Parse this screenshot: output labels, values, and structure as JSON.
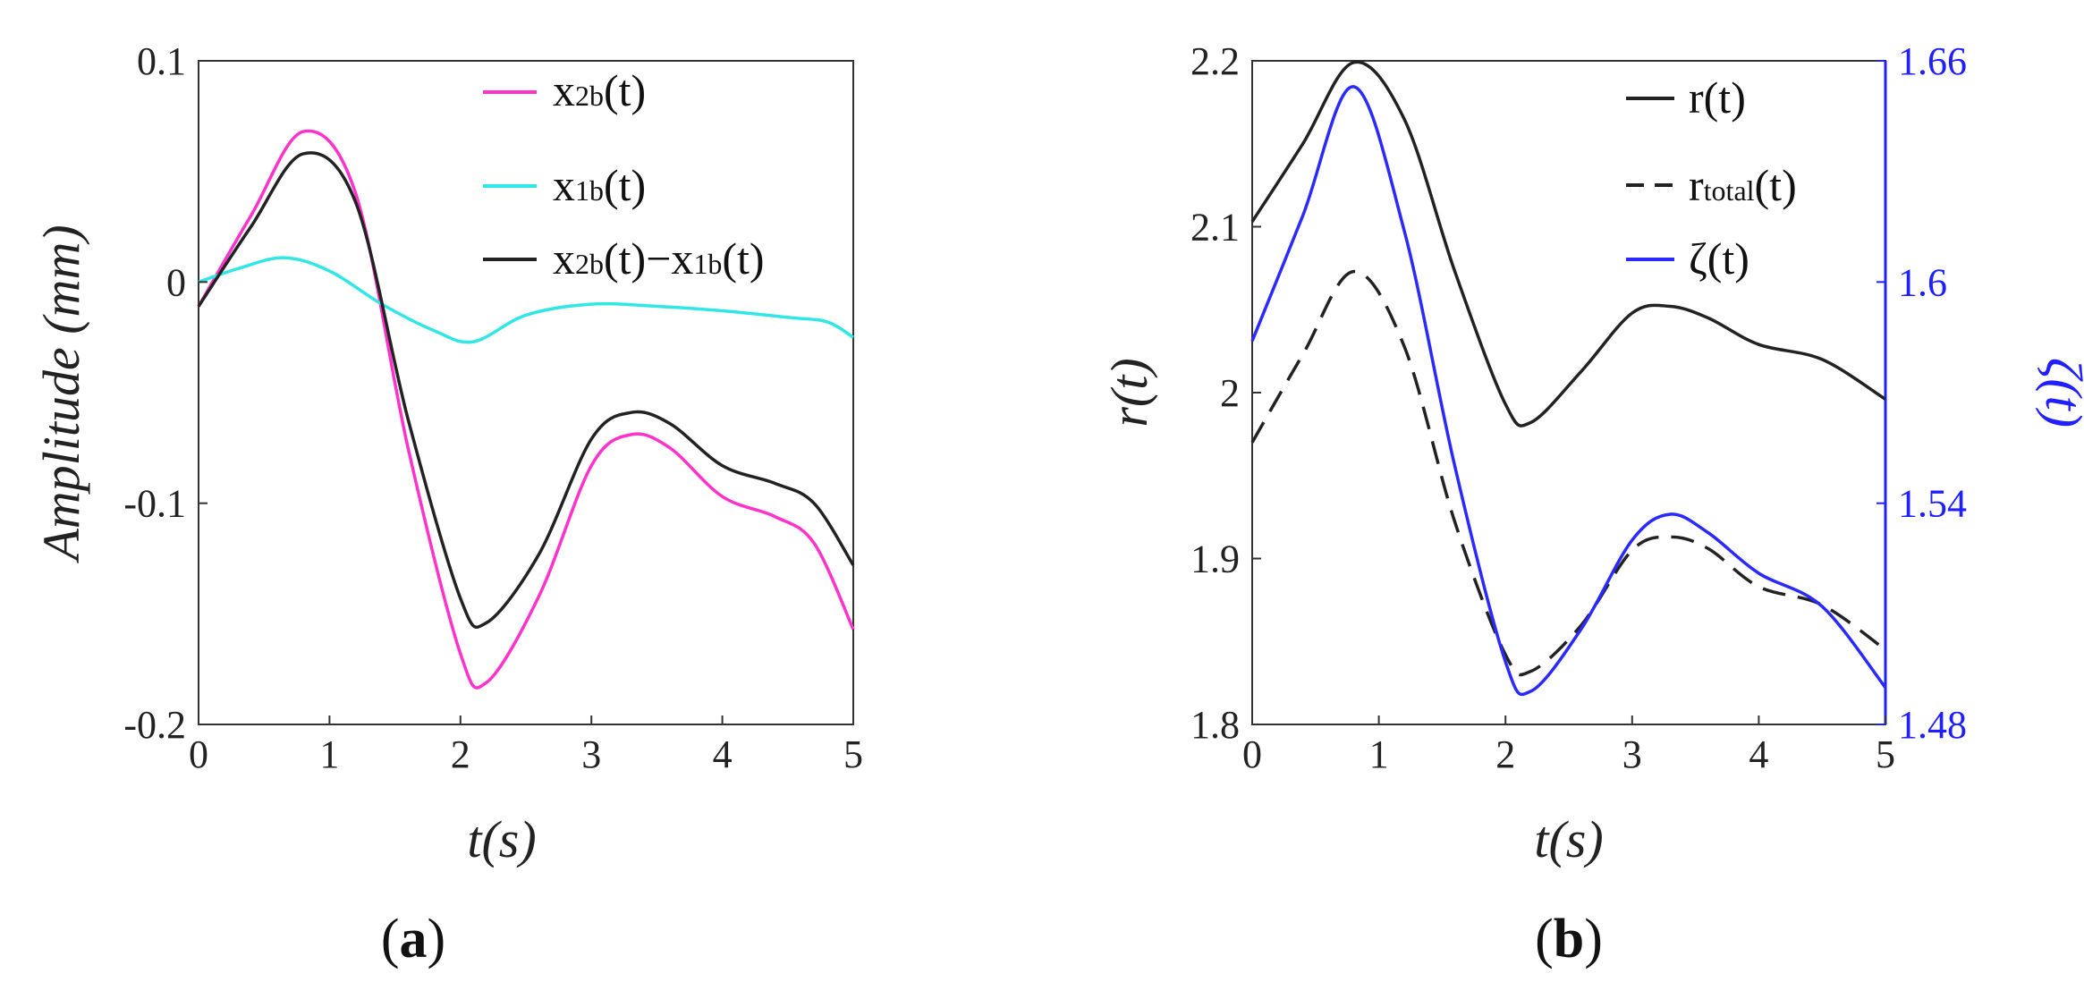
{
  "colors": {
    "x2b": "#ff33cc",
    "x1b": "#33e6e6",
    "diff": "#222222",
    "r": "#222222",
    "rtotal": "#222222",
    "zeta": "#2a2aff",
    "zeta_axis": "#1f1fff"
  },
  "chart_data": [
    {
      "type": "line",
      "panel_label": "a",
      "xlabel": "t(s)",
      "ylabel": "Amplitude (mm)",
      "xlim": [
        0,
        5
      ],
      "ylim": [
        -0.2,
        0.1
      ],
      "x_ticks": [
        "0",
        "1",
        "2",
        "3",
        "4",
        "5"
      ],
      "y_ticks": [
        "0.1",
        "0",
        "-0.1",
        "-0.2"
      ],
      "legend_position": "top-right",
      "series": [
        {
          "name": "x2b(t)",
          "legend_main": "x",
          "legend_sub": "2b",
          "legend_rest": "(t)",
          "color_key": "x2b",
          "dash": "solid",
          "x": [
            0,
            0.4,
            0.8,
            1.2,
            1.6,
            2.0,
            2.2,
            2.6,
            3.0,
            3.3,
            3.6,
            4.0,
            4.4,
            4.7,
            5.0
          ],
          "y": [
            -0.011,
            0.03,
            0.068,
            0.04,
            -0.075,
            -0.168,
            -0.181,
            -0.142,
            -0.083,
            -0.069,
            -0.075,
            -0.097,
            -0.106,
            -0.118,
            -0.157
          ]
        },
        {
          "name": "x1b(t)",
          "legend_main": "x",
          "legend_sub": "1b",
          "legend_rest": "(t)",
          "color_key": "x1b",
          "dash": "solid",
          "x": [
            0,
            0.3,
            0.65,
            1.0,
            1.4,
            1.8,
            2.1,
            2.5,
            3.0,
            3.5,
            4.0,
            4.5,
            4.8,
            5.0
          ],
          "y": [
            0.0,
            0.006,
            0.011,
            0.005,
            -0.01,
            -0.022,
            -0.027,
            -0.015,
            -0.01,
            -0.011,
            -0.013,
            -0.016,
            -0.018,
            -0.025
          ]
        },
        {
          "name": "x2b(t)−x1b(t)",
          "legend_main": "x",
          "legend_sub": "2b",
          "legend_rest": "(t)−",
          "legend_main2": "x",
          "legend_sub2": "1b",
          "legend_rest2": "(t)",
          "color_key": "diff",
          "dash": "solid",
          "x": [
            0,
            0.4,
            0.8,
            1.2,
            1.6,
            2.0,
            2.2,
            2.6,
            3.0,
            3.3,
            3.6,
            4.0,
            4.4,
            4.7,
            5.0
          ],
          "y": [
            -0.011,
            0.025,
            0.058,
            0.036,
            -0.062,
            -0.143,
            -0.154,
            -0.123,
            -0.071,
            -0.059,
            -0.064,
            -0.083,
            -0.091,
            -0.1,
            -0.128
          ]
        }
      ]
    },
    {
      "type": "line",
      "panel_label": "b",
      "xlabel": "t(s)",
      "ylabel": "r(t)",
      "y2label": "ζ(t)",
      "xlim": [
        0,
        5
      ],
      "ylim": [
        1.8,
        2.2
      ],
      "y2lim": [
        1.48,
        1.66
      ],
      "x_ticks": [
        "0",
        "1",
        "2",
        "3",
        "4",
        "5"
      ],
      "y_ticks": [
        "2.2",
        "2.1",
        "2",
        "1.9",
        "1.8"
      ],
      "y2_ticks": [
        "1.66",
        "1.6",
        "1.54",
        "1.48"
      ],
      "legend_position": "top-right",
      "series": [
        {
          "name": "r(t)",
          "legend_main": "r",
          "legend_sub": "",
          "legend_rest": "(t)",
          "color_key": "r",
          "dash": "solid",
          "axis": "left",
          "x": [
            0,
            0.4,
            0.8,
            1.2,
            1.6,
            2.0,
            2.2,
            2.6,
            3.0,
            3.3,
            3.6,
            4.0,
            4.5,
            5.0
          ],
          "y": [
            2.103,
            2.15,
            2.199,
            2.165,
            2.073,
            1.993,
            1.982,
            2.013,
            2.048,
            2.052,
            2.045,
            2.029,
            2.02,
            1.996
          ]
        },
        {
          "name": "rtotal(t)",
          "legend_main": "r",
          "legend_sub": "total",
          "legend_rest": "(t)",
          "color_key": "rtotal",
          "dash": "dashed",
          "axis": "left",
          "x": [
            0,
            0.4,
            0.8,
            1.2,
            1.6,
            2.0,
            2.2,
            2.6,
            3.0,
            3.3,
            3.6,
            4.0,
            4.5,
            5.0
          ],
          "y": [
            1.97,
            2.023,
            2.073,
            2.028,
            1.922,
            1.842,
            1.832,
            1.86,
            1.905,
            1.913,
            1.906,
            1.883,
            1.872,
            1.845
          ]
        },
        {
          "name": "ζ(t)",
          "legend_main": "ζ",
          "legend_sub": "",
          "legend_rest": "(t)",
          "color_key": "zeta",
          "dash": "solid",
          "axis": "right",
          "x": [
            0,
            0.4,
            0.8,
            1.2,
            1.6,
            2.0,
            2.2,
            2.6,
            3.0,
            3.3,
            3.6,
            4.0,
            4.5,
            5.0
          ],
          "y": [
            1.584,
            1.618,
            1.653,
            1.614,
            1.55,
            1.497,
            1.489,
            1.506,
            1.53,
            1.537,
            1.532,
            1.521,
            1.512,
            1.49
          ]
        }
      ]
    }
  ]
}
